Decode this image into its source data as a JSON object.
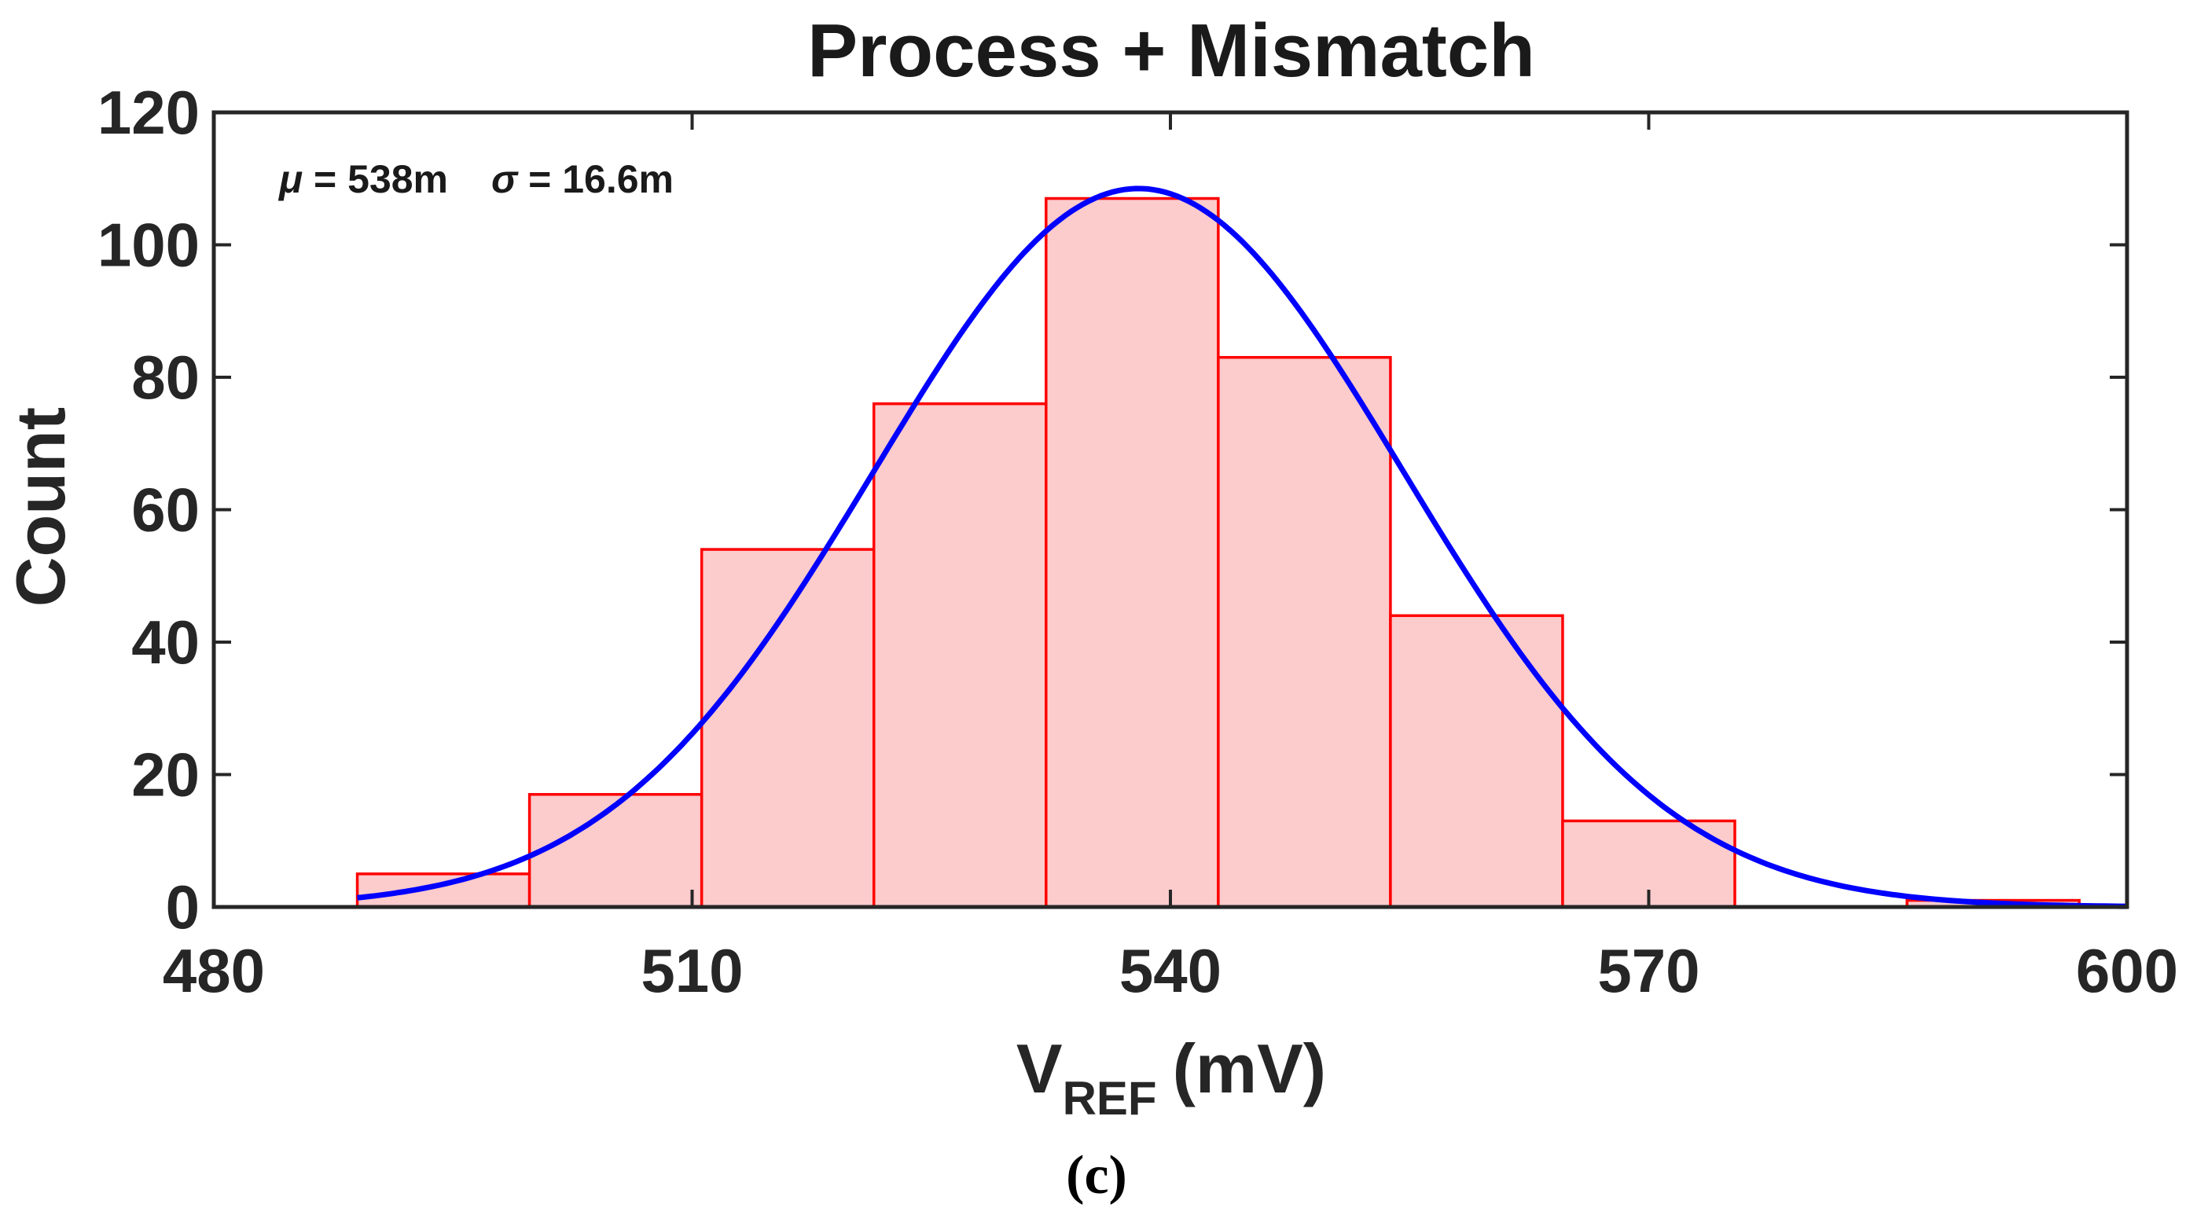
{
  "chart_data": {
    "type": "bar",
    "title": "Process + Mismatch",
    "xlabel": {
      "main": "V",
      "subscript": "REF",
      "unit": "(mV)"
    },
    "ylabel": "Count",
    "xlim": [
      480,
      600
    ],
    "ylim": [
      0,
      120
    ],
    "xticks": [
      "480",
      "510",
      "540",
      "570",
      "600"
    ],
    "yticks": [
      "0",
      "20",
      "40",
      "60",
      "80",
      "100",
      "120"
    ],
    "bins": [
      {
        "start": 489.0,
        "end": 499.8,
        "count": 5
      },
      {
        "start": 499.8,
        "end": 510.6,
        "count": 17
      },
      {
        "start": 510.6,
        "end": 521.4,
        "count": 54
      },
      {
        "start": 521.4,
        "end": 532.2,
        "count": 76
      },
      {
        "start": 532.2,
        "end": 543.0,
        "count": 107
      },
      {
        "start": 543.0,
        "end": 553.8,
        "count": 83
      },
      {
        "start": 553.8,
        "end": 564.6,
        "count": 44
      },
      {
        "start": 564.6,
        "end": 575.4,
        "count": 13
      },
      {
        "start": 575.4,
        "end": 586.2,
        "count": 0
      },
      {
        "start": 586.2,
        "end": 597.0,
        "count": 1
      }
    ],
    "fit": {
      "type": "normal",
      "mu": 538,
      "sigma": 16.6,
      "peak": 108.5,
      "x_range": [
        489,
        600
      ]
    },
    "annotation": {
      "mu_symbol": "μ",
      "mu_text": " = 538m",
      "sigma_symbol": "σ",
      "sigma_text": " = 16.6m"
    },
    "colors": {
      "bar_fill": "#fccbcc",
      "bar_edge": "#ff0000",
      "fit_line": "#0000ff",
      "axes": "#262626"
    }
  },
  "caption": "(c)"
}
